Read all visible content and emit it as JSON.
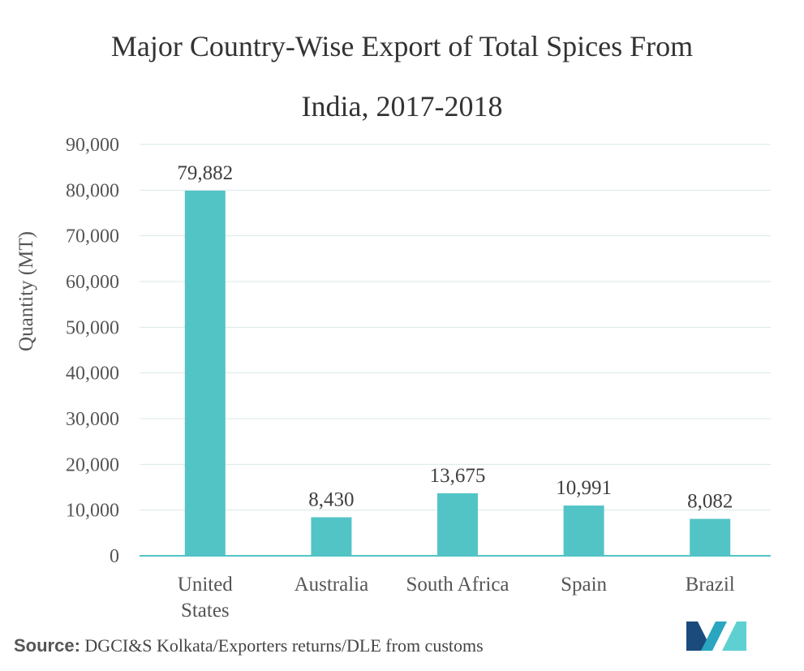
{
  "chart_data": {
    "type": "bar",
    "title": "Major Country-Wise Export of Total Spices From India, 2017-2018",
    "title_lines": [
      "Major Country-Wise Export of Total Spices From",
      "India, 2017-2018"
    ],
    "categories": [
      "United States",
      "Australia",
      "South Africa",
      "Spain",
      "Brazil"
    ],
    "category_lines": [
      [
        "United",
        "States"
      ],
      [
        "Australia"
      ],
      [
        "South Africa"
      ],
      [
        "Spain"
      ],
      [
        "Brazil"
      ]
    ],
    "values": [
      79882,
      8430,
      13675,
      10991,
      8082
    ],
    "value_labels": [
      "79,882",
      "8,430",
      "13,675",
      "10,991",
      "8,082"
    ],
    "xlabel": "",
    "ylabel": "Quantity (MT)",
    "ylim": [
      0,
      90000
    ],
    "yticks": [
      0,
      10000,
      20000,
      30000,
      40000,
      50000,
      60000,
      70000,
      80000,
      90000
    ],
    "ytick_labels": [
      "0",
      "10,000",
      "20,000",
      "30,000",
      "40,000",
      "50,000",
      "60,000",
      "70,000",
      "80,000",
      "90,000"
    ],
    "grid": true,
    "bar_color": "#52c4c6",
    "grid_color": "#d9e8e8",
    "axis_color": "#52c4c6"
  },
  "source": {
    "label": "Source:",
    "text": "DGCI&S Kolkata/Exporters returns/DLE from customs"
  },
  "logo": {
    "icon": "mordor-intelligence-logo-icon",
    "colors": [
      "#1a4b7c",
      "#2aa6c0",
      "#5fd0d2"
    ]
  }
}
